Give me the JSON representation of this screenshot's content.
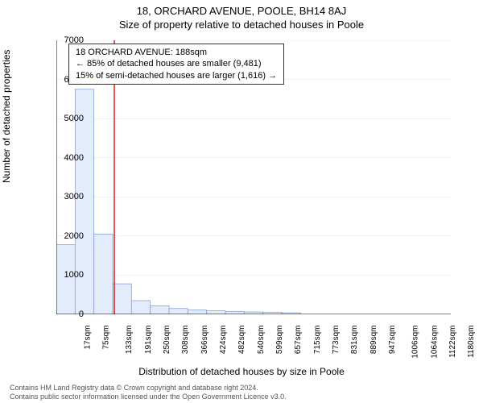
{
  "chart": {
    "type": "histogram",
    "title_main": "18, ORCHARD AVENUE, POOLE, BH14 8AJ",
    "title_sub": "Size of property relative to detached houses in Poole",
    "y_axis_label": "Number of detached properties",
    "x_axis_label": "Distribution of detached houses by size in Poole",
    "ylim": [
      0,
      7000
    ],
    "ytick_step": 1000,
    "yticks": [
      0,
      1000,
      2000,
      3000,
      4000,
      5000,
      6000,
      7000
    ],
    "xticks": [
      "17sqm",
      "75sqm",
      "133sqm",
      "191sqm",
      "250sqm",
      "308sqm",
      "366sqm",
      "424sqm",
      "482sqm",
      "540sqm",
      "599sqm",
      "657sqm",
      "715sqm",
      "773sqm",
      "831sqm",
      "889sqm",
      "947sqm",
      "1006sqm",
      "1064sqm",
      "1122sqm",
      "1180sqm"
    ],
    "bar_values": [
      1780,
      5750,
      2050,
      780,
      350,
      220,
      150,
      110,
      90,
      70,
      60,
      50,
      40,
      0,
      0,
      0,
      0,
      0,
      0,
      0,
      0
    ],
    "bar_fill_color": "#e3ecfa",
    "bar_stroke_color": "#87a4d6",
    "background_color": "#ffffff",
    "grid_color": "#e0e0e0",
    "axis_color": "#000000",
    "reference_line": {
      "x_position": 188,
      "color": "#d92020",
      "width": 1.5
    },
    "annotation": {
      "line1": "18 ORCHARD AVENUE: 188sqm",
      "line2": "← 85% of detached houses are smaller (9,481)",
      "line3": "15% of semi-detached houses are larger (1,616) →",
      "border_color": "#333333",
      "background": "#ffffff",
      "fontsize": 11
    },
    "footer_line1": "Contains HM Land Registry data © Crown copyright and database right 2024.",
    "footer_line2": "Contains public sector information licensed under the Open Government Licence v3.0.",
    "title_fontsize": 13,
    "label_fontsize": 12,
    "tick_fontsize_y": 11,
    "tick_fontsize_x": 10,
    "footer_fontsize": 9,
    "footer_color": "#555555"
  }
}
